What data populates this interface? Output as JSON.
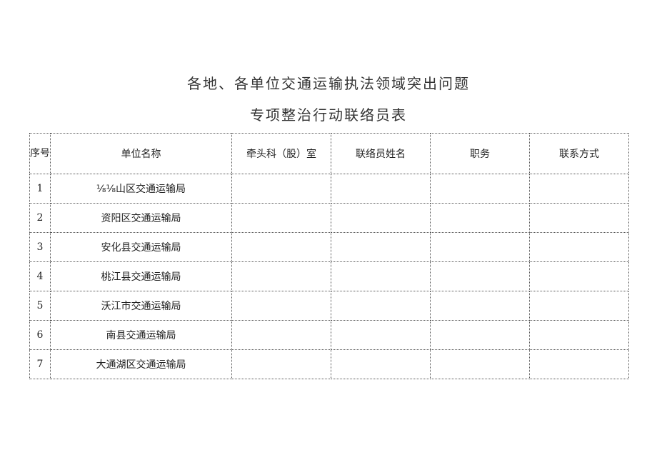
{
  "title": {
    "line1": "各地、各单位交通运输执法领域突出问题",
    "line2": "专项整治行动联络员表"
  },
  "table": {
    "headers": [
      "序号",
      "单位名称",
      "牵头科（股）室",
      "联络员姓名",
      "职务",
      "联系方式"
    ],
    "rows": [
      {
        "no": "1",
        "unit": "⅛⅛山区交通运输局"
      },
      {
        "no": "2",
        "unit": "资阳区交通运输局"
      },
      {
        "no": "3",
        "unit": "安化县交通运输局"
      },
      {
        "no": "4",
        "unit": "桃江县交通运输局"
      },
      {
        "no": "5",
        "unit": "沃江市交通运输局"
      },
      {
        "no": "6",
        "unit": "南县交通运输局"
      },
      {
        "no": "7",
        "unit": "大通湖区交通运输局"
      }
    ]
  }
}
